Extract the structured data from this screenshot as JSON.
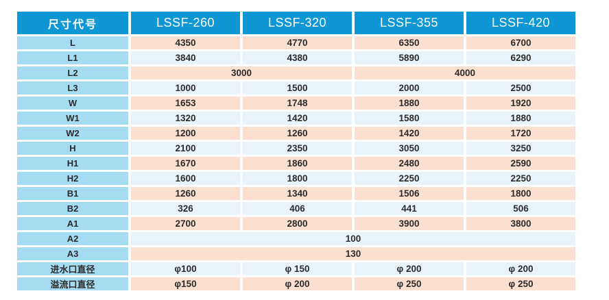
{
  "colors": {
    "page_bg": "#ffffff",
    "header_bg": "#0f97d5",
    "header_text": "#ffffff",
    "label_bg": "#a6dcf2",
    "row_odd_bg": "#fbdfd1",
    "row_even_bg": "#e9f3fa",
    "cell_text": "#2b2b2b"
  },
  "chart_data": {
    "type": "table",
    "columns": [
      "尺寸代号",
      "LSSF-260",
      "LSSF-320",
      "LSSF-355",
      "LSSF-420"
    ],
    "rows": [
      {
        "label": "L",
        "cells": [
          {
            "text": "4350"
          },
          {
            "text": "4770"
          },
          {
            "text": "6350"
          },
          {
            "text": "6700"
          }
        ]
      },
      {
        "label": "L1",
        "cells": [
          {
            "text": "3840"
          },
          {
            "text": "4380"
          },
          {
            "text": "5890"
          },
          {
            "text": "6290"
          }
        ]
      },
      {
        "label": "L2",
        "cells": [
          {
            "text": "3000",
            "span": 2
          },
          {
            "text": "4000",
            "span": 2
          }
        ]
      },
      {
        "label": "L3",
        "cells": [
          {
            "text": "1000"
          },
          {
            "text": "1500"
          },
          {
            "text": "2000"
          },
          {
            "text": "2500"
          }
        ]
      },
      {
        "label": "W",
        "cells": [
          {
            "text": "1653"
          },
          {
            "text": "1748"
          },
          {
            "text": "1880"
          },
          {
            "text": "1920"
          }
        ]
      },
      {
        "label": "W1",
        "cells": [
          {
            "text": "1320"
          },
          {
            "text": "1420"
          },
          {
            "text": "1580"
          },
          {
            "text": "1880"
          }
        ]
      },
      {
        "label": "W2",
        "cells": [
          {
            "text": "1200"
          },
          {
            "text": "1260"
          },
          {
            "text": "1420"
          },
          {
            "text": "1720"
          }
        ]
      },
      {
        "label": "H",
        "cells": [
          {
            "text": "2100"
          },
          {
            "text": "2350"
          },
          {
            "text": "3050"
          },
          {
            "text": "3250"
          }
        ]
      },
      {
        "label": "H1",
        "cells": [
          {
            "text": "1670"
          },
          {
            "text": "1860"
          },
          {
            "text": "2480"
          },
          {
            "text": "2590"
          }
        ]
      },
      {
        "label": "H2",
        "cells": [
          {
            "text": "1600"
          },
          {
            "text": "1800"
          },
          {
            "text": "2250"
          },
          {
            "text": "2250"
          }
        ]
      },
      {
        "label": "B1",
        "cells": [
          {
            "text": "1260"
          },
          {
            "text": "1340"
          },
          {
            "text": "1506"
          },
          {
            "text": "1800"
          }
        ]
      },
      {
        "label": "B2",
        "cells": [
          {
            "text": "326"
          },
          {
            "text": "406"
          },
          {
            "text": "441"
          },
          {
            "text": "506"
          }
        ]
      },
      {
        "label": "A1",
        "cells": [
          {
            "text": "2700"
          },
          {
            "text": "2800"
          },
          {
            "text": "3900"
          },
          {
            "text": "3800"
          }
        ]
      },
      {
        "label": "A2",
        "cells": [
          {
            "text": "100",
            "span": 4
          }
        ]
      },
      {
        "label": "A3",
        "cells": [
          {
            "text": "130",
            "span": 4
          }
        ]
      },
      {
        "label": "进水口直径",
        "cells": [
          {
            "text": "φ100"
          },
          {
            "text": "φ 150"
          },
          {
            "text": "φ 200"
          },
          {
            "text": "φ 200"
          }
        ]
      },
      {
        "label": "溢流口直径",
        "cells": [
          {
            "text": "φ150"
          },
          {
            "text": "φ 200"
          },
          {
            "text": "φ 250"
          },
          {
            "text": "φ 250"
          }
        ]
      }
    ]
  }
}
